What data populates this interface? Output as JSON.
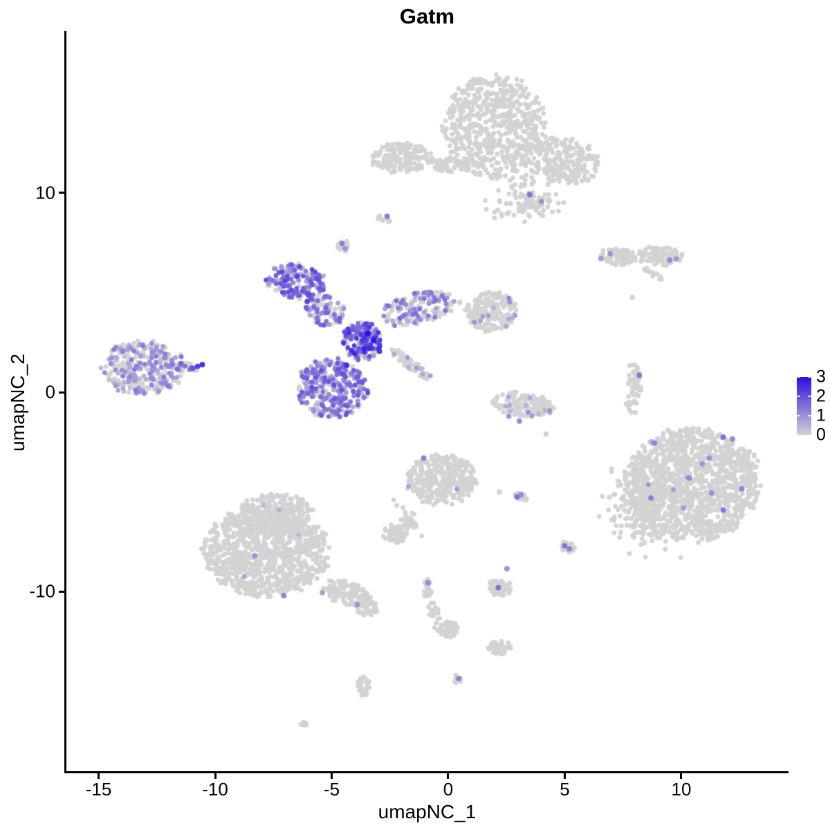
{
  "title": "Gatm",
  "chart_data": {
    "type": "scatter",
    "title": "Gatm",
    "xlabel": "umapNC_1",
    "ylabel": "umapNC_2",
    "x_domain": [
      -16.41,
      14.6
    ],
    "y_domain": [
      -19.0,
      18.1
    ],
    "x_ticks": [
      -15,
      -10,
      -5,
      0,
      5,
      10
    ],
    "y_ticks": [
      10,
      0,
      -10
    ],
    "grid": false,
    "legend_position": "right",
    "point_radius": 3.4,
    "highlight_radius": 3.9,
    "seed": 1337,
    "color_scale": {
      "min_value": 0,
      "max_value": 3,
      "low": "#d3d3d3",
      "high": "#2a0ce2",
      "ticks": [
        3,
        2,
        1,
        0
      ]
    },
    "clusters": [
      {
        "name": "top-main",
        "cx": 2.0,
        "cy": 13.3,
        "rx": 2.2,
        "ry": 2.6,
        "rot": 0,
        "n": 600,
        "soft": false,
        "frac": 0,
        "vmin": 0,
        "vmax": 0
      },
      {
        "name": "top-right-arm",
        "cx": 4.9,
        "cy": 11.6,
        "rx": 1.7,
        "ry": 1.2,
        "rot": -20,
        "n": 230,
        "soft": false,
        "frac": 0,
        "vmin": 0,
        "vmax": 0
      },
      {
        "name": "top-lower-tail",
        "cx": 3.4,
        "cy": 9.7,
        "rx": 1.2,
        "ry": 1.0,
        "rot": 0,
        "n": 110,
        "soft": true,
        "frac": 0,
        "vmin": 0,
        "vmax": 0
      },
      {
        "name": "top-left-bits",
        "cx": 0.45,
        "cy": 11.3,
        "rx": 0.9,
        "ry": 0.4,
        "rot": 0,
        "n": 45,
        "soft": true,
        "frac": 0,
        "vmin": 0,
        "vmax": 0
      },
      {
        "name": "topleft-small",
        "cx": -2.0,
        "cy": 11.75,
        "rx": 1.3,
        "ry": 0.8,
        "rot": 0,
        "n": 140,
        "soft": false,
        "frac": 0,
        "vmin": 0,
        "vmax": 0
      },
      {
        "name": "topleft-chain",
        "cx": -0.45,
        "cy": 11.45,
        "rx": 0.85,
        "ry": 0.3,
        "rot": 0,
        "n": 30,
        "soft": true,
        "frac": 0,
        "vmin": 0,
        "vmax": 0
      },
      {
        "name": "tiny-upper-1",
        "cx": -2.76,
        "cy": 8.68,
        "rx": 0.3,
        "ry": 0.22,
        "rot": -30,
        "n": 12,
        "soft": false,
        "frac": 0,
        "vmin": 0,
        "vmax": 0
      },
      {
        "name": "tiny-upper-2",
        "cx": -4.5,
        "cy": 7.33,
        "rx": 0.28,
        "ry": 0.33,
        "rot": 20,
        "n": 13,
        "soft": false,
        "frac": 0,
        "vmin": 0,
        "vmax": 0
      },
      {
        "name": "center-arm-ul",
        "cx": -6.5,
        "cy": 5.5,
        "rx": 1.35,
        "ry": 0.9,
        "rot": -10,
        "n": 175,
        "soft": false,
        "frac": 0.72,
        "vmin": 0.4,
        "vmax": 2.2
      },
      {
        "name": "center-bridge",
        "cx": -5.3,
        "cy": 4.1,
        "rx": 0.95,
        "ry": 0.75,
        "rot": -40,
        "n": 95,
        "soft": false,
        "frac": 0.6,
        "vmin": 0.3,
        "vmax": 1.8
      },
      {
        "name": "center-knot",
        "cx": -3.7,
        "cy": 2.6,
        "rx": 0.85,
        "ry": 1.0,
        "rot": 0,
        "n": 175,
        "soft": false,
        "frac": 0.75,
        "vmin": 0.5,
        "vmax": 2.6
      },
      {
        "name": "center-lower",
        "cx": -5.0,
        "cy": 0.2,
        "rx": 1.55,
        "ry": 1.5,
        "rot": 0,
        "n": 340,
        "soft": false,
        "frac": 0.68,
        "vmin": 0.3,
        "vmax": 2.0
      },
      {
        "name": "center-arm-r",
        "cx": -1.3,
        "cy": 4.2,
        "rx": 1.7,
        "ry": 0.8,
        "rot": 15,
        "n": 165,
        "soft": false,
        "frac": 0.45,
        "vmin": 0.3,
        "vmax": 1.6
      },
      {
        "name": "center-streak",
        "cx": -1.6,
        "cy": 1.4,
        "rx": 1.15,
        "ry": 0.25,
        "rot": -42,
        "n": 70,
        "soft": false,
        "frac": 0.15,
        "vmin": 0.3,
        "vmax": 0.9
      },
      {
        "name": "left-main",
        "cx": -13.1,
        "cy": 1.2,
        "rx": 1.75,
        "ry": 1.4,
        "rot": 0,
        "n": 300,
        "soft": false,
        "frac": 0.5,
        "vmin": 0.3,
        "vmax": 1.4
      },
      {
        "name": "left-arm",
        "cx": -11.3,
        "cy": 1.25,
        "rx": 0.65,
        "ry": 0.25,
        "rot": 0,
        "n": 22,
        "soft": false,
        "frac": 0.55,
        "vmin": 0.8,
        "vmax": 2.2
      },
      {
        "name": "mid-right",
        "cx": 1.85,
        "cy": 4.05,
        "rx": 1.1,
        "ry": 1.0,
        "rot": 0,
        "n": 200,
        "soft": false,
        "frac": 0.07,
        "vmin": 0.5,
        "vmax": 1.2
      },
      {
        "name": "right-elong-a",
        "cx": 7.3,
        "cy": 6.8,
        "rx": 0.85,
        "ry": 0.42,
        "rot": -8,
        "n": 70,
        "soft": false,
        "frac": 0,
        "vmin": 0,
        "vmax": 0
      },
      {
        "name": "right-elong-b",
        "cx": 9.1,
        "cy": 6.85,
        "rx": 1.0,
        "ry": 0.5,
        "rot": 0,
        "n": 95,
        "soft": false,
        "frac": 0,
        "vmin": 0,
        "vmax": 0
      },
      {
        "name": "right-streak",
        "cx": 8.8,
        "cy": 5.95,
        "rx": 0.5,
        "ry": 0.15,
        "rot": -35,
        "n": 12,
        "soft": false,
        "frac": 0,
        "vmin": 0,
        "vmax": 0
      },
      {
        "name": "right-thin-vert",
        "cx": 8.0,
        "cy": 0.6,
        "rx": 0.3,
        "ry": 0.9,
        "rot": 10,
        "n": 42,
        "soft": false,
        "frac": 0,
        "vmin": 0,
        "vmax": 0
      },
      {
        "name": "right-thin-tail",
        "cx": 7.85,
        "cy": -0.55,
        "rx": 0.35,
        "ry": 0.55,
        "rot": 0,
        "n": 12,
        "soft": true,
        "frac": 0,
        "vmin": 0,
        "vmax": 0
      },
      {
        "name": "crescent",
        "cx": 3.2,
        "cy": -0.6,
        "rx": 1.35,
        "ry": 0.6,
        "rot": -8,
        "n": 150,
        "soft": false,
        "frac": 0.05,
        "vmin": 0.4,
        "vmax": 1.1
      },
      {
        "name": "bottomright-main",
        "cx": 10.5,
        "cy": -4.6,
        "rx": 2.9,
        "ry": 2.85,
        "rot": 0,
        "n": 1300,
        "soft": false,
        "frac": 0.004,
        "vmin": 0.4,
        "vmax": 1.0
      },
      {
        "name": "bottomright-tail",
        "cx": 8.35,
        "cy": -5.9,
        "rx": 1.2,
        "ry": 1.7,
        "rot": 0,
        "n": 170,
        "soft": true,
        "frac": 0,
        "vmin": 0,
        "vmax": 0
      },
      {
        "name": "bottomleft-main",
        "cx": -7.8,
        "cy": -7.9,
        "rx": 2.7,
        "ry": 2.3,
        "rot": 0,
        "n": 1000,
        "soft": false,
        "frac": 0.003,
        "vmin": 0.3,
        "vmax": 0.9
      },
      {
        "name": "bottomleft-top",
        "cx": -7.4,
        "cy": -6.0,
        "rx": 1.6,
        "ry": 0.95,
        "rot": 0,
        "n": 230,
        "soft": false,
        "frac": 0,
        "vmin": 0,
        "vmax": 0
      },
      {
        "name": "bottomleft-tail",
        "cx": -4.35,
        "cy": -10.1,
        "rx": 1.1,
        "ry": 0.6,
        "rot": -25,
        "n": 130,
        "soft": false,
        "frac": 0.01,
        "vmin": 0.4,
        "vmax": 0.9
      },
      {
        "name": "bottomleft-tip",
        "cx": -3.5,
        "cy": -10.8,
        "rx": 0.55,
        "ry": 0.4,
        "rot": -25,
        "n": 40,
        "soft": false,
        "frac": 0,
        "vmin": 0,
        "vmax": 0
      },
      {
        "name": "centerbottom",
        "cx": -0.3,
        "cy": -4.4,
        "rx": 1.5,
        "ry": 1.25,
        "rot": 0,
        "n": 330,
        "soft": false,
        "frac": 0.004,
        "vmin": 0.5,
        "vmax": 1.2
      },
      {
        "name": "cb-chain",
        "cx": -1.7,
        "cy": -6.4,
        "rx": 0.45,
        "ry": 0.8,
        "rot": 30,
        "n": 35,
        "soft": true,
        "frac": 0,
        "vmin": 0,
        "vmax": 0
      },
      {
        "name": "cb-left-blob",
        "cx": -2.3,
        "cy": -7.1,
        "rx": 0.55,
        "ry": 0.5,
        "rot": 0,
        "n": 60,
        "soft": false,
        "frac": 0,
        "vmin": 0,
        "vmax": 0
      },
      {
        "name": "small-diag",
        "cx": 3.0,
        "cy": -5.2,
        "rx": 0.45,
        "ry": 0.18,
        "rot": -30,
        "n": 14,
        "soft": false,
        "frac": 0.1,
        "vmin": 0.6,
        "vmax": 1.2
      },
      {
        "name": "small-right",
        "cx": 5.15,
        "cy": -7.75,
        "rx": 0.3,
        "ry": 0.35,
        "rot": 0,
        "n": 24,
        "soft": false,
        "frac": 0.08,
        "vmin": 0.6,
        "vmax": 1.2
      },
      {
        "name": "below-single",
        "cx": 2.2,
        "cy": -9.8,
        "rx": 0.5,
        "ry": 0.42,
        "rot": 0,
        "n": 48,
        "soft": false,
        "frac": 0,
        "vmin": 0,
        "vmax": 0
      },
      {
        "name": "small-vert",
        "cx": -0.9,
        "cy": -9.9,
        "rx": 0.2,
        "ry": 0.55,
        "rot": 0,
        "n": 24,
        "soft": false,
        "frac": 0,
        "vmin": 0,
        "vmax": 0
      },
      {
        "name": "chain-2",
        "cx": -0.6,
        "cy": -11.2,
        "rx": 0.3,
        "ry": 0.55,
        "rot": 20,
        "n": 25,
        "soft": true,
        "frac": 0,
        "vmin": 0,
        "vmax": 0
      },
      {
        "name": "blob-2",
        "cx": 0.0,
        "cy": -11.9,
        "rx": 0.45,
        "ry": 0.4,
        "rot": 0,
        "n": 55,
        "soft": false,
        "frac": 0,
        "vmin": 0,
        "vmax": 0
      },
      {
        "name": "bottom-small",
        "cx": 2.2,
        "cy": -12.8,
        "rx": 0.5,
        "ry": 0.35,
        "rot": 0,
        "n": 40,
        "soft": false,
        "frac": 0,
        "vmin": 0,
        "vmax": 0
      },
      {
        "name": "tiny-bottom",
        "cx": -3.6,
        "cy": -14.7,
        "rx": 0.3,
        "ry": 0.55,
        "rot": 0,
        "n": 30,
        "soft": false,
        "frac": 0,
        "vmin": 0,
        "vmax": 0
      },
      {
        "name": "tiny-bottom-2",
        "cx": 0.4,
        "cy": -14.4,
        "rx": 0.22,
        "ry": 0.25,
        "rot": 0,
        "n": 10,
        "soft": false,
        "frac": 0,
        "vmin": 0,
        "vmax": 0
      },
      {
        "name": "dot-pair",
        "cx": -6.2,
        "cy": -16.6,
        "rx": 0.14,
        "ry": 0.13,
        "rot": 0,
        "n": 5,
        "soft": false,
        "frac": 0,
        "vmin": 0,
        "vmax": 0
      }
    ],
    "extra_points": [
      {
        "x": 3.5,
        "y": 9.9,
        "v": 1.5
      },
      {
        "x": 4.0,
        "y": 9.55,
        "v": 1.0
      },
      {
        "x": -2.62,
        "y": 8.82,
        "v": 1.4
      },
      {
        "x": -4.55,
        "y": 7.45,
        "v": 1.3
      },
      {
        "x": -4.42,
        "y": 7.2,
        "v": 1.0
      },
      {
        "x": -3.45,
        "y": 2.95,
        "v": 3.0
      },
      {
        "x": -3.6,
        "y": 2.2,
        "v": 2.7
      },
      {
        "x": -4.35,
        "y": 1.35,
        "v": 2.5
      },
      {
        "x": -2.95,
        "y": 2.05,
        "v": 2.4
      },
      {
        "x": -6.05,
        "y": 4.55,
        "v": 2.2
      },
      {
        "x": -3.2,
        "y": 2.6,
        "v": 2.9
      },
      {
        "x": -10.75,
        "y": 1.3,
        "v": 2.3
      },
      {
        "x": -10.55,
        "y": 1.38,
        "v": 2.5
      },
      {
        "x": -10.95,
        "y": 1.2,
        "v": 1.9
      },
      {
        "x": 6.95,
        "y": 6.95,
        "v": 1.0
      },
      {
        "x": 6.55,
        "y": 6.7,
        "v": 0.85
      },
      {
        "x": 9.5,
        "y": 6.62,
        "v": 1.1
      },
      {
        "x": 9.78,
        "y": 6.68,
        "v": 0.9
      },
      {
        "x": 8.2,
        "y": 0.85,
        "v": 1.4
      },
      {
        "x": 2.6,
        "y": -1.2,
        "v": 0.9
      },
      {
        "x": 3.05,
        "y": -1.45,
        "v": 1.1
      },
      {
        "x": 11.8,
        "y": -2.25,
        "v": 1.5
      },
      {
        "x": 12.2,
        "y": -2.35,
        "v": 1.1
      },
      {
        "x": 8.85,
        "y": -2.55,
        "v": 1.2
      },
      {
        "x": 11.2,
        "y": -3.3,
        "v": 1.0
      },
      {
        "x": 10.9,
        "y": -3.6,
        "v": 0.9
      },
      {
        "x": 10.35,
        "y": -4.3,
        "v": 1.1
      },
      {
        "x": 12.6,
        "y": -4.85,
        "v": 1.2
      },
      {
        "x": 11.3,
        "y": -5.05,
        "v": 1.0
      },
      {
        "x": 8.7,
        "y": -5.3,
        "v": 1.3
      },
      {
        "x": 10.1,
        "y": -5.8,
        "v": 0.8
      },
      {
        "x": 11.8,
        "y": -5.9,
        "v": 1.4
      },
      {
        "x": -8.3,
        "y": -8.2,
        "v": 0.9
      },
      {
        "x": -7.05,
        "y": -10.2,
        "v": 1.2
      },
      {
        "x": -5.4,
        "y": -10.05,
        "v": 0.8
      },
      {
        "x": -3.9,
        "y": -10.65,
        "v": 1.0
      },
      {
        "x": -1.05,
        "y": -3.3,
        "v": 1.3
      },
      {
        "x": 2.95,
        "y": -5.25,
        "v": 1.5
      },
      {
        "x": 3.12,
        "y": -5.12,
        "v": 1.0
      },
      {
        "x": 5.0,
        "y": -7.7,
        "v": 1.5
      },
      {
        "x": 5.2,
        "y": -7.85,
        "v": 1.2
      },
      {
        "x": 2.52,
        "y": -8.85,
        "v": 1.0
      },
      {
        "x": 2.15,
        "y": -9.8,
        "v": 1.5
      },
      {
        "x": -0.87,
        "y": -9.55,
        "v": 1.1
      },
      {
        "x": 0.45,
        "y": -14.35,
        "v": 1.2
      },
      {
        "x": 4.2,
        "y": -2.1,
        "v": 0
      },
      {
        "x": 2.2,
        "y": -5.0,
        "v": 0
      },
      {
        "x": 0.5,
        "y": 4.5,
        "v": 0
      },
      {
        "x": 7.9,
        "y": 4.75,
        "v": 0
      }
    ]
  }
}
